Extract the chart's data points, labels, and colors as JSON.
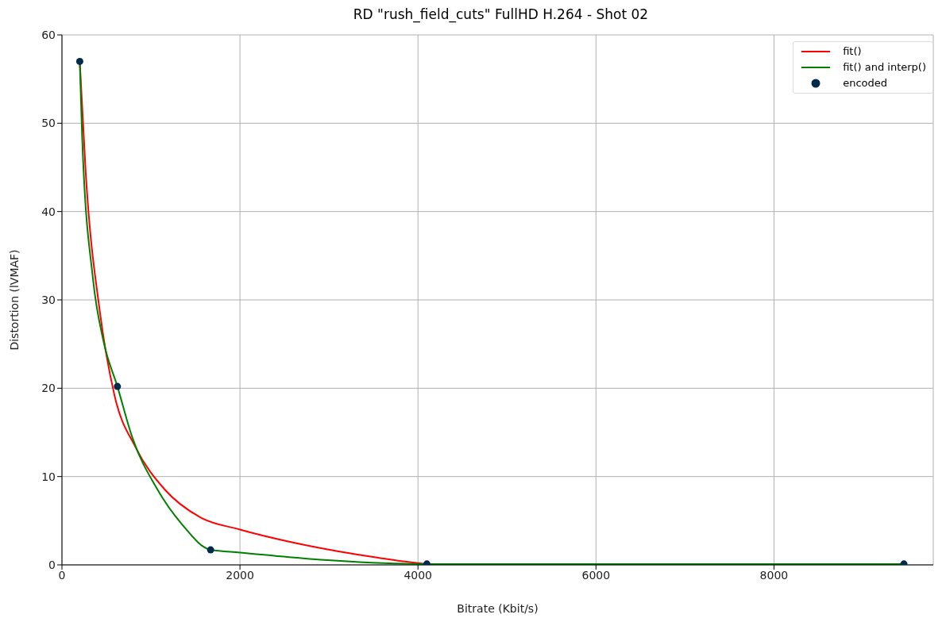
{
  "chart_data": {
    "type": "line",
    "title": "RD \"rush_field_cuts\" FullHD H.264 - Shot 02",
    "xlabel": "Bitrate (Kbit/s)",
    "ylabel": "Distortion (lVMAF)",
    "xlim": [
      0,
      9790
    ],
    "xticks": [
      0,
      2000,
      4000,
      6000,
      8000
    ],
    "ylim": [
      0,
      60
    ],
    "yticks": [
      0,
      10,
      20,
      30,
      40,
      50,
      60
    ],
    "grid": true,
    "legend": "top right",
    "series": [
      {
        "name": "fit()",
        "type": "line",
        "color": "#ff0000",
        "marker": "none",
        "x": [
          200,
          267,
          428,
          588,
          828,
          1149,
          1551,
          2000,
          2754,
          3556,
          4000,
          4100
        ],
        "values": [
          57,
          44.4,
          28.5,
          19.3,
          13.3,
          8.6,
          5.4,
          4.0,
          2.2,
          0.8,
          0.2,
          0.1
        ]
      },
      {
        "name": "fit() and interp()",
        "type": "line",
        "color": "#008000",
        "marker": "none",
        "x": [
          200,
          227,
          347,
          467,
          623,
          788,
          1069,
          1348,
          1670,
          2000,
          2754,
          4100,
          9460
        ],
        "values": [
          57,
          48.4,
          32.5,
          25.3,
          20.2,
          14.5,
          8.6,
          4.6,
          1.7,
          1.4,
          0.7,
          0.1,
          0.1
        ]
      },
      {
        "name": "encoded",
        "type": "scatter",
        "color": "#002a4a",
        "marker": "circle",
        "x": [
          200,
          623,
          1670,
          4100,
          9460
        ],
        "values": [
          57,
          20.2,
          1.7,
          0.1,
          0.1
        ]
      }
    ]
  }
}
